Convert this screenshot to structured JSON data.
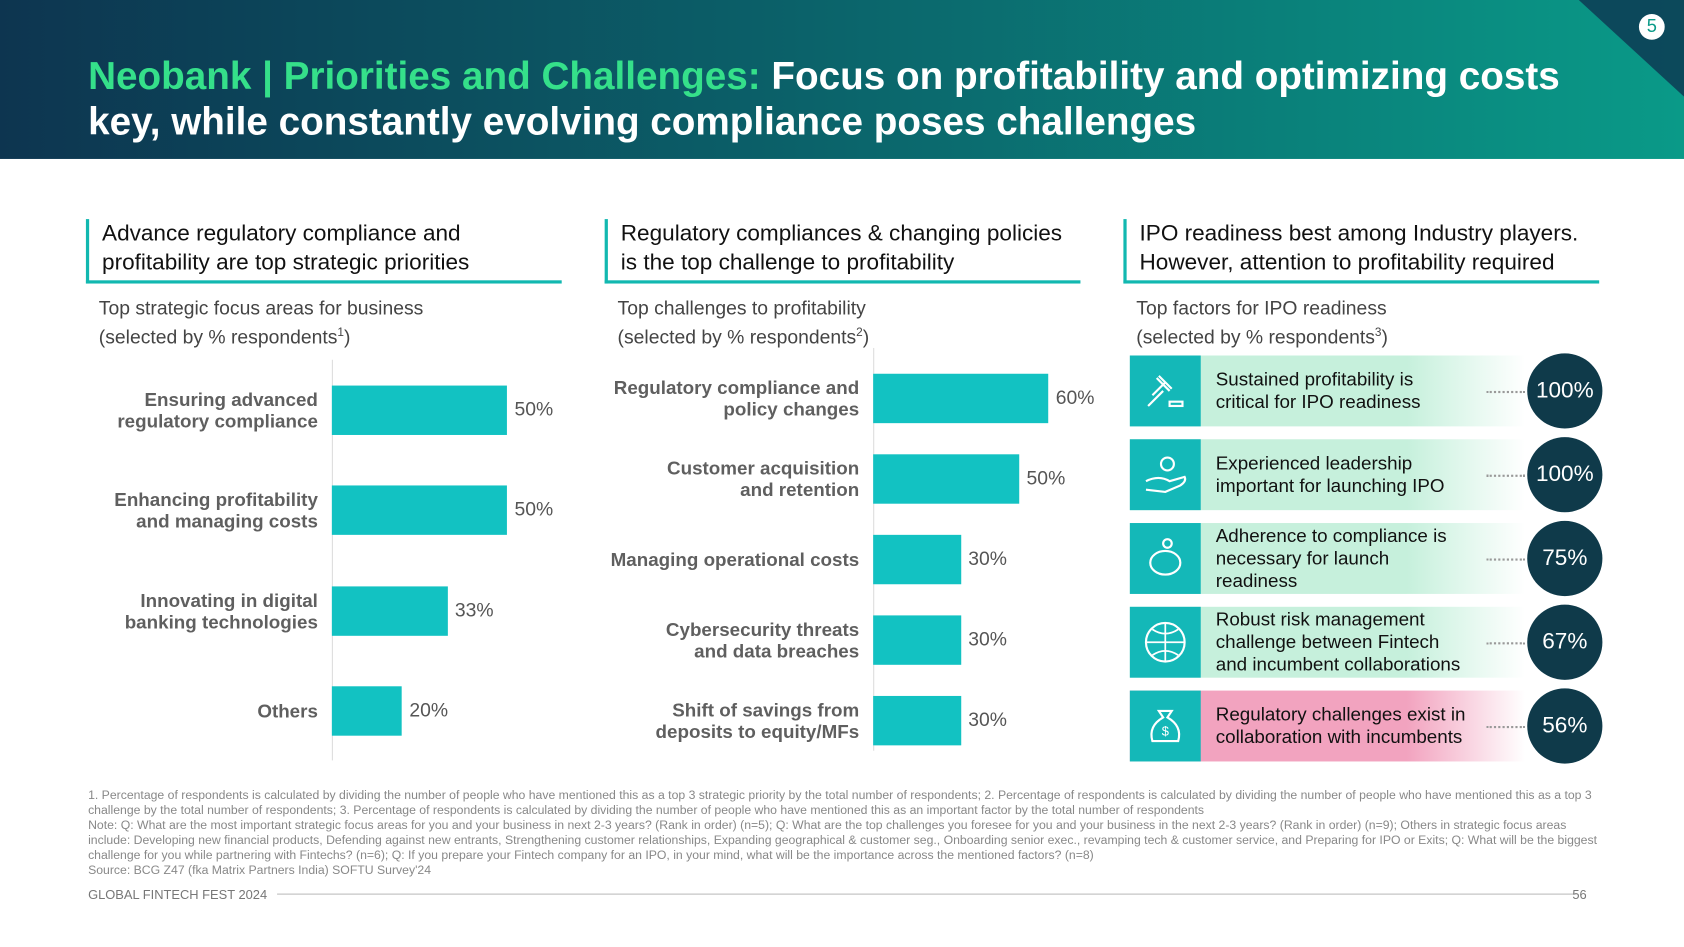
{
  "header": {
    "title_highlight": "Neobank | Priorities and Challenges:",
    "title_rest": "Focus on profitability and optimizing costs",
    "title_line_2": "key, while constantly evolving compliance poses challenges",
    "page_badge": "5"
  },
  "chart_data": [
    {
      "type": "bar",
      "heading": "Advance regulatory compliance and profitability are top strategic priorities",
      "subtitle": "Top strategic focus areas for business",
      "subtitle_2": "(selected by % respondents",
      "footnote_ref": "1",
      "subtitle_end": ")",
      "categories": [
        "Ensuring advanced\nregulatory compliance",
        "Enhancing profitability\nand managing costs",
        "Innovating in digital\nbanking technologies",
        "Others"
      ],
      "values": [
        50,
        50,
        33,
        20
      ],
      "value_labels": [
        "50%",
        "50%",
        "33%",
        "20%"
      ],
      "color": "#12c2c2"
    },
    {
      "type": "bar",
      "heading": "Regulatory compliances & changing policies is the top challenge to profitability",
      "subtitle": "Top challenges to profitability",
      "subtitle_2": "(selected by % respondents",
      "footnote_ref": "2",
      "subtitle_end": ")",
      "categories": [
        "Regulatory compliance and\npolicy changes",
        "Customer acquisition\nand retention",
        "Managing operational costs",
        "Cybersecurity threats\nand data breaches",
        "Shift of savings from\ndeposits to equity/MFs"
      ],
      "values": [
        60,
        50,
        30,
        30,
        30
      ],
      "value_labels": [
        "60%",
        "50%",
        "30%",
        "30%",
        "30%"
      ],
      "color": "#12c2c2"
    },
    {
      "type": "badge",
      "heading": "IPO readiness best among Industry players. However, attention to profitability required",
      "subtitle": "Top factors for IPO readiness",
      "subtitle_2": "(selected by % respondents",
      "footnote_ref": "3",
      "subtitle_end": ")",
      "categories": [
        "Sustained profitability is\ncritical for IPO readiness",
        "Experienced leadership\nimportant for launching IPO",
        "Adherence to compliance is\nnecessary for launch\nreadiness",
        "Robust risk management\nchallenge between Fintech\nand incumbent collaborations",
        "Regulatory challenges exist in\ncollaboration with incumbents"
      ],
      "values": [
        100,
        100,
        75,
        67,
        56
      ],
      "value_labels": [
        "100%",
        "100%",
        "75%",
        "67%",
        "56%"
      ],
      "color": "#14b8b8",
      "card_colors": [
        "#c6f0dc",
        "#c6f0dc",
        "#c6f0dc",
        "#c6f0dc",
        "#f2a3bf"
      ],
      "badge_color": "#0f3a4a"
    }
  ],
  "footnotes": [
    "1. Percentage of respondents is calculated by dividing the number of people who have mentioned this as a top 3 strategic priority by the total number of respondents; 2. Percentage of respondents is calculated by dividing the number of people who have mentioned this as a top 3 challenge by the total number of respondents; 3. Percentage of respondents is calculated by dividing the number of people who have mentioned this as an important factor by the total number of respondents",
    "Note: Q: What are the most important strategic focus areas for you and your business in next 2-3 years? (Rank in order) (n=5); Q: What are the top challenges you foresee for you and your business in the next 2-3 years? (Rank in order) (n=9); Others in strategic focus areas include: Developing new financial products, Defending against new entrants, Strengthening customer relationships, Expanding geographical & customer seg., Onboarding senior exec., revamping tech & customer service, and Preparing for IPO or Exits; Q: What will be the biggest challenge for you while partnering with Fintechs? (n=6); Q: If you prepare your Fintech company for an IPO, in your mind, what will be the importance across the mentioned factors? (n=8)",
    "Source: BCG Z47 (fka Matrix Partners India) SOFTU Survey'24"
  ],
  "footer": {
    "event": "GLOBAL FINTECH FEST 2024",
    "page": "56"
  }
}
